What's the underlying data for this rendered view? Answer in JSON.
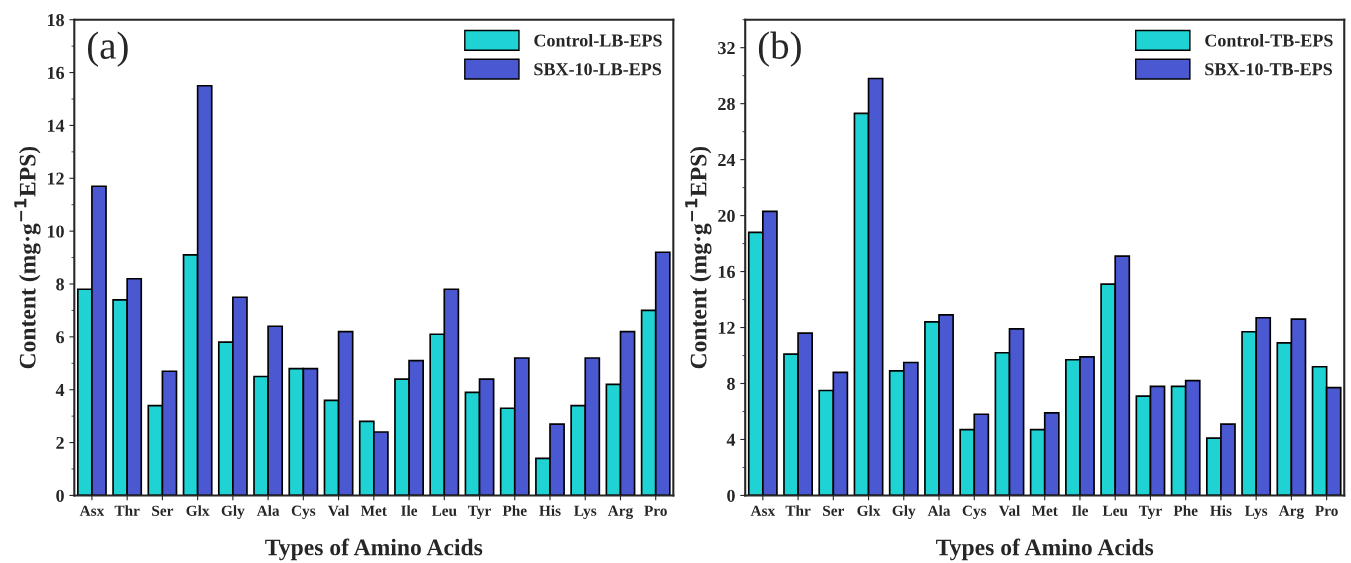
{
  "chart_data": [
    {
      "type": "bar",
      "xlabel": "Types of Amino Acids",
      "ylabel": "Content (mg·g$^{−1}$EPS)",
      "annotations": [
        "(a)"
      ],
      "categories": [
        "Asx",
        "Thr",
        "Ser",
        "Glx",
        "Gly",
        "Ala",
        "Cys",
        "Val",
        "Met",
        "Ile",
        "Leu",
        "Tyr",
        "Phe",
        "His",
        "Lys",
        "Arg",
        "Pro"
      ],
      "series": [
        {
          "name": "Control-LB-EPS",
          "color": "#1fd3d4",
          "values": [
            7.8,
            7.4,
            3.4,
            9.1,
            5.8,
            4.5,
            4.8,
            3.6,
            2.8,
            4.4,
            6.1,
            3.9,
            3.3,
            1.4,
            3.4,
            4.2,
            7.0
          ]
        },
        {
          "name": "SBX-10-LB-EPS",
          "color": "#4a58d2",
          "values": [
            11.7,
            8.2,
            4.7,
            15.5,
            7.5,
            6.4,
            4.8,
            6.2,
            2.4,
            5.1,
            7.8,
            4.4,
            5.2,
            2.7,
            5.2,
            6.2,
            9.2
          ]
        }
      ],
      "ylim": [
        0,
        18
      ],
      "yticks": [
        0,
        2,
        4,
        6,
        8,
        10,
        12,
        14,
        16,
        18
      ],
      "grid": false,
      "legend": "top right"
    },
    {
      "type": "bar",
      "xlabel": "Types of Amino Acids",
      "ylabel": "Content (mg·g$^{−1}$EPS)",
      "annotations": [
        "(b)"
      ],
      "categories": [
        "Asx",
        "Thr",
        "Ser",
        "Glx",
        "Gly",
        "Ala",
        "Cys",
        "Val",
        "Met",
        "Ile",
        "Leu",
        "Tyr",
        "Phe",
        "His",
        "Lys",
        "Arg",
        "Pro"
      ],
      "series": [
        {
          "name": "Control-TB-EPS",
          "color": "#1fd3d4",
          "values": [
            18.8,
            10.1,
            7.5,
            27.3,
            8.9,
            12.4,
            4.7,
            10.2,
            4.7,
            9.7,
            15.1,
            7.1,
            7.8,
            4.1,
            11.7,
            10.9,
            9.2
          ]
        },
        {
          "name": "SBX-10-TB-EPS",
          "color": "#4a58d2",
          "values": [
            20.3,
            11.6,
            8.8,
            29.8,
            9.5,
            12.9,
            5.8,
            11.9,
            5.9,
            9.9,
            17.1,
            7.8,
            8.2,
            5.1,
            12.7,
            12.6,
            7.7
          ]
        }
      ],
      "ylim": [
        0,
        34
      ],
      "yticks": [
        0,
        4,
        8,
        12,
        16,
        20,
        24,
        28,
        32
      ],
      "grid": false,
      "legend": "top right"
    }
  ]
}
